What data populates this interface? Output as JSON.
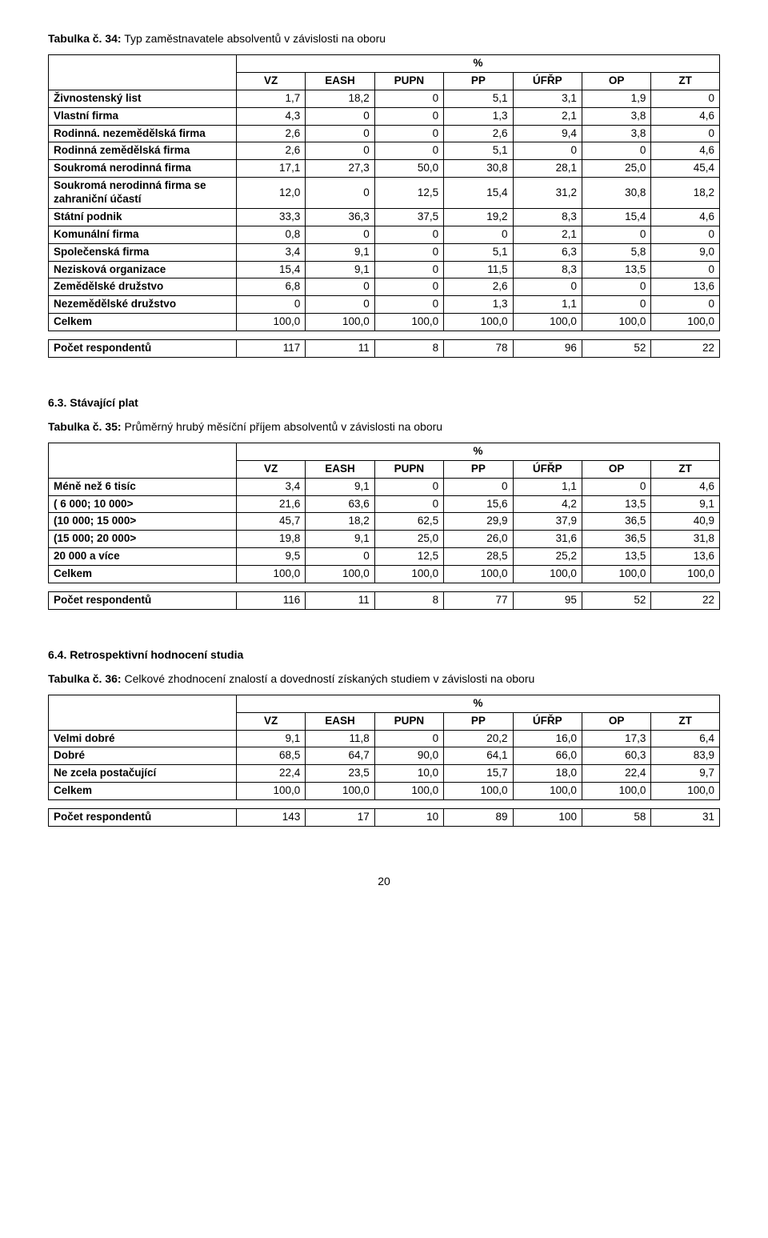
{
  "tables": [
    {
      "title_bold": "Tabulka č. 34:",
      "title_rest": " Typ zaměstnavatele absolventů v závislosti na oboru",
      "pct_label": "%",
      "columns": [
        "VZ",
        "EASH",
        "PUPN",
        "PP",
        "ÚFŘP",
        "OP",
        "ZT"
      ],
      "rows": [
        {
          "label": "Živnostenský list",
          "vals": [
            "1,7",
            "18,2",
            "0",
            "5,1",
            "3,1",
            "1,9",
            "0"
          ]
        },
        {
          "label": "Vlastní firma",
          "vals": [
            "4,3",
            "0",
            "0",
            "1,3",
            "2,1",
            "3,8",
            "4,6"
          ]
        },
        {
          "label": "Rodinná. nezemědělská firma",
          "vals": [
            "2,6",
            "0",
            "0",
            "2,6",
            "9,4",
            "3,8",
            "0"
          ]
        },
        {
          "label": "Rodinná zemědělská firma",
          "vals": [
            "2,6",
            "0",
            "0",
            "5,1",
            "0",
            "0",
            "4,6"
          ]
        },
        {
          "label": "Soukromá nerodinná firma",
          "vals": [
            "17,1",
            "27,3",
            "50,0",
            "30,8",
            "28,1",
            "25,0",
            "45,4"
          ]
        },
        {
          "label": "Soukromá nerodinná firma se zahraniční účastí",
          "vals": [
            "12,0",
            "0",
            "12,5",
            "15,4",
            "31,2",
            "30,8",
            "18,2"
          ]
        },
        {
          "label": "Státní podnik",
          "vals": [
            "33,3",
            "36,3",
            "37,5",
            "19,2",
            "8,3",
            "15,4",
            "4,6"
          ]
        },
        {
          "label": "Komunální firma",
          "vals": [
            "0,8",
            "0",
            "0",
            "0",
            "2,1",
            "0",
            "0"
          ]
        },
        {
          "label": "Společenská firma",
          "vals": [
            "3,4",
            "9,1",
            "0",
            "5,1",
            "6,3",
            "5,8",
            "9,0"
          ]
        },
        {
          "label": "Nezisková organizace",
          "vals": [
            "15,4",
            "9,1",
            "0",
            "11,5",
            "8,3",
            "13,5",
            "0"
          ]
        },
        {
          "label": "Zemědělské družstvo",
          "vals": [
            "6,8",
            "0",
            "0",
            "2,6",
            "0",
            "0",
            "13,6"
          ]
        },
        {
          "label": "Nezemědělské družstvo",
          "vals": [
            "0",
            "0",
            "0",
            "1,3",
            "1,1",
            "0",
            "0"
          ]
        },
        {
          "label": "Celkem",
          "vals": [
            "100,0",
            "100,0",
            "100,0",
            "100,0",
            "100,0",
            "100,0",
            "100,0"
          ]
        }
      ],
      "resp_label": "Počet respondentů",
      "resp_vals": [
        "117",
        "11",
        "8",
        "78",
        "96",
        "52",
        "22"
      ]
    },
    {
      "section_heading": "6.3.  Stávající plat",
      "title_bold": "Tabulka č. 35:",
      "title_rest": " Průměrný hrubý měsíční příjem absolventů v závislosti na oboru",
      "pct_label": "%",
      "columns": [
        "VZ",
        "EASH",
        "PUPN",
        "PP",
        "ÚFŘP",
        "OP",
        "ZT"
      ],
      "rows": [
        {
          "label": "Méně než 6 tisíc",
          "vals": [
            "3,4",
            "9,1",
            "0",
            "0",
            "1,1",
            "0",
            "4,6"
          ]
        },
        {
          "label": "( 6 000;  10 000>",
          "vals": [
            "21,6",
            "63,6",
            "0",
            "15,6",
            "4,2",
            "13,5",
            "9,1"
          ]
        },
        {
          "label": "(10 000;  15 000>",
          "vals": [
            "45,7",
            "18,2",
            "62,5",
            "29,9",
            "37,9",
            "36,5",
            "40,9"
          ]
        },
        {
          "label": "(15 000;  20 000>",
          "vals": [
            "19,8",
            "9,1",
            "25,0",
            "26,0",
            "31,6",
            "36,5",
            "31,8"
          ]
        },
        {
          "label": "20 000 a více",
          "vals": [
            "9,5",
            "0",
            "12,5",
            "28,5",
            "25,2",
            "13,5",
            "13,6"
          ]
        },
        {
          "label": "Celkem",
          "vals": [
            "100,0",
            "100,0",
            "100,0",
            "100,0",
            "100,0",
            "100,0",
            "100,0"
          ]
        }
      ],
      "resp_label": "Počet respondentů",
      "resp_vals": [
        "116",
        "11",
        "8",
        "77",
        "95",
        "52",
        "22"
      ]
    },
    {
      "section_heading": "6.4.  Retrospektivní hodnocení studia",
      "title_bold": "Tabulka č. 36:",
      "title_rest": " Celkové zhodnocení znalostí a dovedností získaných studiem v závislosti na oboru",
      "pct_label": "%",
      "columns": [
        "VZ",
        "EASH",
        "PUPN",
        "PP",
        "ÚFŘP",
        "OP",
        "ZT"
      ],
      "rows": [
        {
          "label": "Velmi dobré",
          "vals": [
            "9,1",
            "11,8",
            "0",
            "20,2",
            "16,0",
            "17,3",
            "6,4"
          ]
        },
        {
          "label": "Dobré",
          "vals": [
            "68,5",
            "64,7",
            "90,0",
            "64,1",
            "66,0",
            "60,3",
            "83,9"
          ]
        },
        {
          "label": "Ne zcela postačující",
          "vals": [
            "22,4",
            "23,5",
            "10,0",
            "15,7",
            "18,0",
            "22,4",
            "9,7"
          ]
        },
        {
          "label": "Celkem",
          "vals": [
            "100,0",
            "100,0",
            "100,0",
            "100,0",
            "100,0",
            "100,0",
            "100,0"
          ]
        }
      ],
      "resp_label": "Počet respondentů",
      "resp_vals": [
        "143",
        "17",
        "10",
        "89",
        "100",
        "58",
        "31"
      ]
    }
  ],
  "col_widths_main": [
    "28%",
    "10.3%",
    "10.3%",
    "10.3%",
    "10.3%",
    "10.3%",
    "10.3%",
    "10.2%"
  ],
  "page_number": "20"
}
